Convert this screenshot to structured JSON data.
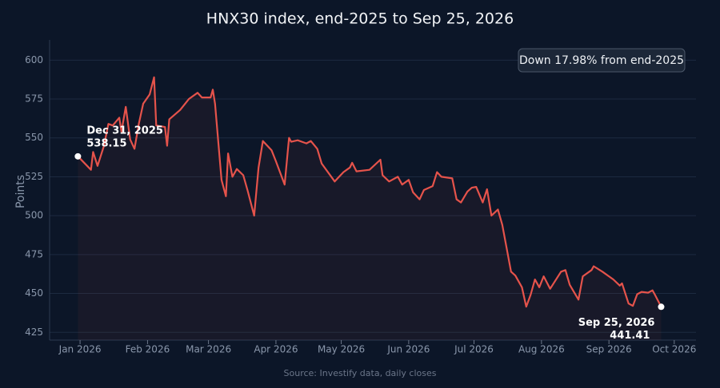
{
  "chart_data": {
    "type": "line",
    "title": "HNX30 index, end-2025 to Sep 25, 2026",
    "y_label": "Points",
    "source": "Source: Investify data, daily closes",
    "summary_badge": "Down 17.98% from end-2025",
    "grid": true,
    "xlim": [
      "2025-12-18",
      "2026-10-11"
    ],
    "ylim": [
      420,
      613
    ],
    "yticks": [
      425,
      450,
      475,
      500,
      525,
      550,
      575,
      600
    ],
    "xticks": [
      {
        "value": "2026-01-01",
        "label": "Jan 2026"
      },
      {
        "value": "2026-02-01",
        "label": "Feb 2026"
      },
      {
        "value": "2026-03-01",
        "label": "Mar 2026"
      },
      {
        "value": "2026-04-01",
        "label": "Apr 2026"
      },
      {
        "value": "2026-05-01",
        "label": "May 2026"
      },
      {
        "value": "2026-06-01",
        "label": "Jun 2026"
      },
      {
        "value": "2026-07-01",
        "label": "Jul 2026"
      },
      {
        "value": "2026-08-01",
        "label": "Aug 2026"
      },
      {
        "value": "2026-09-01",
        "label": "Sep 2026"
      },
      {
        "value": "2026-10-01",
        "label": "Oct 2026"
      }
    ],
    "annotations": [
      {
        "x": "2025-12-31",
        "label": "Dec 31, 2025"
      },
      {
        "x": "2026-09-25",
        "label": "Sep 25, 2026"
      }
    ],
    "x": [
      "2025-12-31",
      "2026-01-06",
      "2026-01-07",
      "2026-01-09",
      "2026-01-12",
      "2026-01-14",
      "2026-01-16",
      "2026-01-19",
      "2026-01-20",
      "2026-01-22",
      "2026-01-24",
      "2026-01-26",
      "2026-01-28",
      "2026-01-30",
      "2026-02-02",
      "2026-02-04",
      "2026-02-05",
      "2026-02-09",
      "2026-02-10",
      "2026-02-11",
      "2026-02-16",
      "2026-02-20",
      "2026-02-24",
      "2026-02-26",
      "2026-03-02",
      "2026-03-03",
      "2026-03-04",
      "2026-03-07",
      "2026-03-09",
      "2026-03-10",
      "2026-03-12",
      "2026-03-14",
      "2026-03-17",
      "2026-03-19",
      "2026-03-22",
      "2026-03-24",
      "2026-03-26",
      "2026-03-30",
      "2026-04-01",
      "2026-04-05",
      "2026-04-07",
      "2026-04-08",
      "2026-04-11",
      "2026-04-15",
      "2026-04-17",
      "2026-04-20",
      "2026-04-22",
      "2026-04-28",
      "2026-05-02",
      "2026-05-05",
      "2026-05-06",
      "2026-05-08",
      "2026-05-14",
      "2026-05-19",
      "2026-05-20",
      "2026-05-23",
      "2026-05-27",
      "2026-05-29",
      "2026-06-01",
      "2026-06-03",
      "2026-06-06",
      "2026-06-08",
      "2026-06-12",
      "2026-06-14",
      "2026-06-16",
      "2026-06-21",
      "2026-06-23",
      "2026-06-25",
      "2026-06-28",
      "2026-06-30",
      "2026-07-02",
      "2026-07-05",
      "2026-07-07",
      "2026-07-09",
      "2026-07-12",
      "2026-07-14",
      "2026-07-18",
      "2026-07-20",
      "2026-07-23",
      "2026-07-25",
      "2026-07-27",
      "2026-07-29",
      "2026-07-31",
      "2026-08-02",
      "2026-08-05",
      "2026-08-10",
      "2026-08-12",
      "2026-08-14",
      "2026-08-18",
      "2026-08-20",
      "2026-08-24",
      "2026-08-25",
      "2026-08-29",
      "2026-09-03",
      "2026-09-06",
      "2026-09-07",
      "2026-09-10",
      "2026-09-12",
      "2026-09-14",
      "2026-09-16",
      "2026-09-19",
      "2026-09-21",
      "2026-09-22",
      "2026-09-25"
    ],
    "series": [
      {
        "name": "HNX30",
        "color": "#e5534b",
        "values": [
          538.15,
          529.5,
          541,
          532,
          545,
          559,
          558,
          563,
          554,
          570,
          549,
          543,
          559,
          572,
          578,
          589,
          558,
          557,
          545,
          562,
          568,
          575,
          579,
          576,
          576,
          581,
          572,
          523,
          512.5,
          540,
          525,
          530,
          526,
          516,
          500,
          531,
          548,
          542,
          535,
          520,
          550,
          547.5,
          548.5,
          546.5,
          548,
          543,
          533.5,
          522,
          528,
          531,
          534,
          528.5,
          529.5,
          536,
          526,
          522,
          525,
          520,
          523,
          515,
          510.5,
          516.5,
          519,
          528,
          525,
          524,
          510.5,
          508.5,
          515.5,
          518,
          518.5,
          508.5,
          517,
          500,
          504,
          494,
          464,
          461.5,
          454,
          441.5,
          449,
          459,
          454,
          461,
          453,
          464,
          465,
          455.5,
          446,
          461,
          465,
          467.5,
          464,
          459,
          455,
          456.5,
          443.5,
          442,
          449.5,
          451,
          450.5,
          452,
          449.5,
          441.41
        ]
      }
    ]
  }
}
